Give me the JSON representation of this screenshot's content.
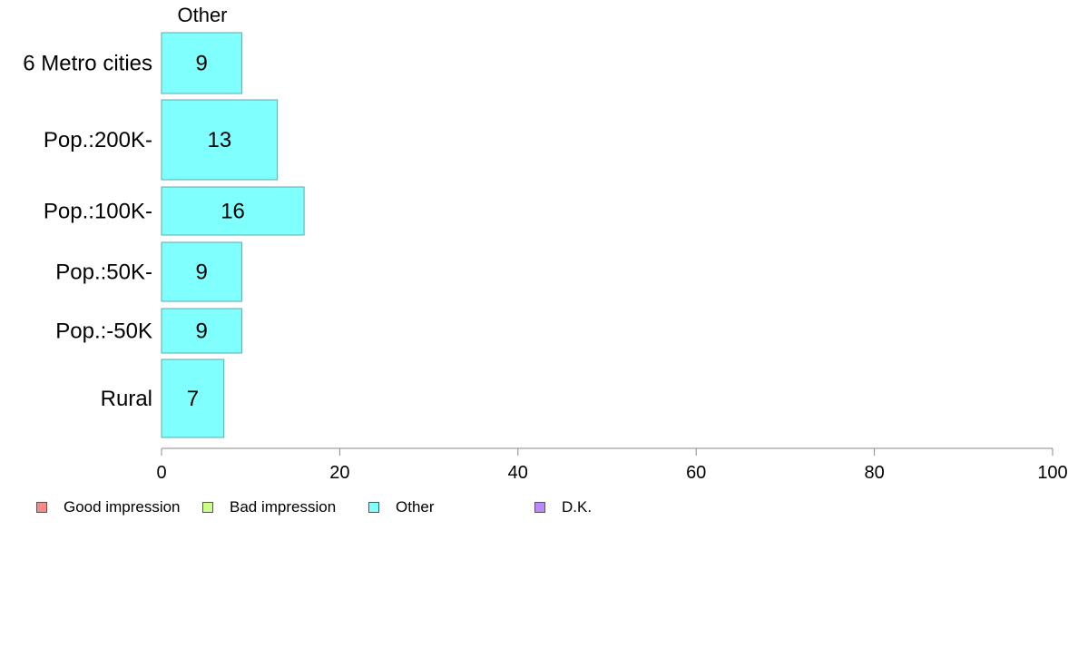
{
  "chart_data": {
    "type": "bar",
    "orientation": "horizontal",
    "panel_title": "Other",
    "categories": [
      "6 Metro cities",
      "Pop.:200K-",
      "Pop.:100K-",
      "Pop.:50K-",
      "Pop.:-50K",
      "Rural"
    ],
    "series": [
      {
        "name": "Other",
        "values": [
          9,
          13,
          16,
          9,
          9,
          7
        ]
      }
    ],
    "data_labels": [
      "9",
      "13",
      "16",
      "9",
      "9",
      "7"
    ],
    "xlim": [
      0,
      100
    ],
    "x_ticks": [
      "0",
      "20",
      "40",
      "60",
      "80",
      "100"
    ],
    "grid": false,
    "bar_color": "#80ffff",
    "bar_edge_color": "#5fa8a8",
    "legend_position": "bottom-left",
    "legend": [
      {
        "label": "Good impression",
        "color": "#f88a8a"
      },
      {
        "label": "Bad impression",
        "color": "#ccff88"
      },
      {
        "label": "Other",
        "color": "#80ffff"
      },
      {
        "label": "D.K.",
        "color": "#bb88ff"
      }
    ]
  }
}
